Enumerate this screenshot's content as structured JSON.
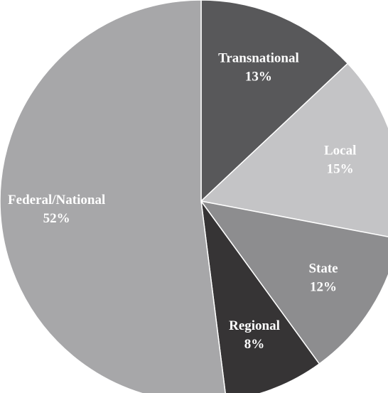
{
  "chart_data": {
    "type": "pie",
    "categories": [
      "Transnational",
      "Local",
      "State",
      "Regional",
      "Federal/National"
    ],
    "values": [
      13,
      15,
      12,
      8,
      52
    ],
    "value_labels": [
      "13%",
      "15%",
      "12%",
      "8%",
      "52%"
    ],
    "colors": [
      "#58585a",
      "#c4c4c6",
      "#8d8d8f",
      "#363435",
      "#a7a7a9"
    ]
  }
}
